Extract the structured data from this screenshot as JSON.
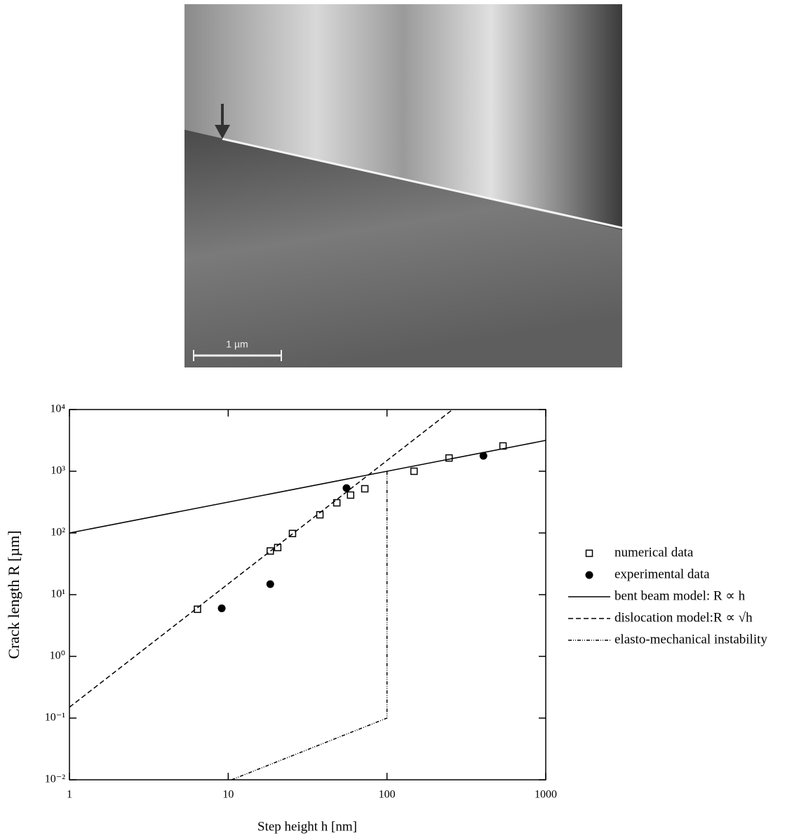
{
  "micrograph": {
    "scale_bar": "1 µm"
  },
  "chart_data": {
    "type": "scatter",
    "xlabel": "Step height h [nm]",
    "ylabel": "Crack length R [µm]",
    "xscale": "log",
    "yscale": "log",
    "xlim": [
      1,
      1000
    ],
    "ylim": [
      0.01,
      10000
    ],
    "xticks": [
      1,
      10,
      100,
      1000
    ],
    "yticks": [
      {
        "value": 10000,
        "label": "10⁴"
      },
      {
        "value": 1000,
        "label": "10³"
      },
      {
        "value": 100,
        "label": "10²"
      },
      {
        "value": 10,
        "label": "10¹"
      },
      {
        "value": 1,
        "label": "10⁰"
      },
      {
        "value": 0.1,
        "label": "10⁻¹"
      },
      {
        "value": 0.01,
        "label": "10⁻²"
      }
    ],
    "legend": "right",
    "series": [
      {
        "name": "numerical data",
        "kind": "scatter",
        "marker": "square-open",
        "color": "#000",
        "x": [
          6.4,
          18.4,
          20.5,
          25.4,
          37.8,
          48.3,
          59,
          72.5,
          148,
          246,
          538
        ],
        "values": [
          5.8,
          51,
          58,
          98,
          197,
          308,
          411,
          520,
          1000,
          1640,
          2570
        ]
      },
      {
        "name": "experimental data",
        "kind": "scatter",
        "marker": "circle",
        "color": "#000",
        "x": [
          9.1,
          18.4,
          55.6,
          405
        ],
        "values": [
          6,
          14.8,
          533,
          1780
        ]
      },
      {
        "name": "bent beam model: R ∝ h",
        "kind": "line",
        "dash": "solid",
        "color": "#000",
        "x": [
          1,
          1000
        ],
        "values": [
          100,
          3160
        ]
      },
      {
        "name": "dislocation model:R ∝ √h",
        "kind": "line",
        "dash": "dashed",
        "color": "#000",
        "x": [
          1,
          259
        ],
        "values": [
          0.15,
          10000
        ]
      },
      {
        "name": "elasto-mechanical instability",
        "kind": "line",
        "dash": "dashdotdot",
        "color": "#000",
        "x": [
          10.5,
          100,
          100
        ],
        "values": [
          0.01,
          0.1,
          1000
        ]
      }
    ]
  }
}
